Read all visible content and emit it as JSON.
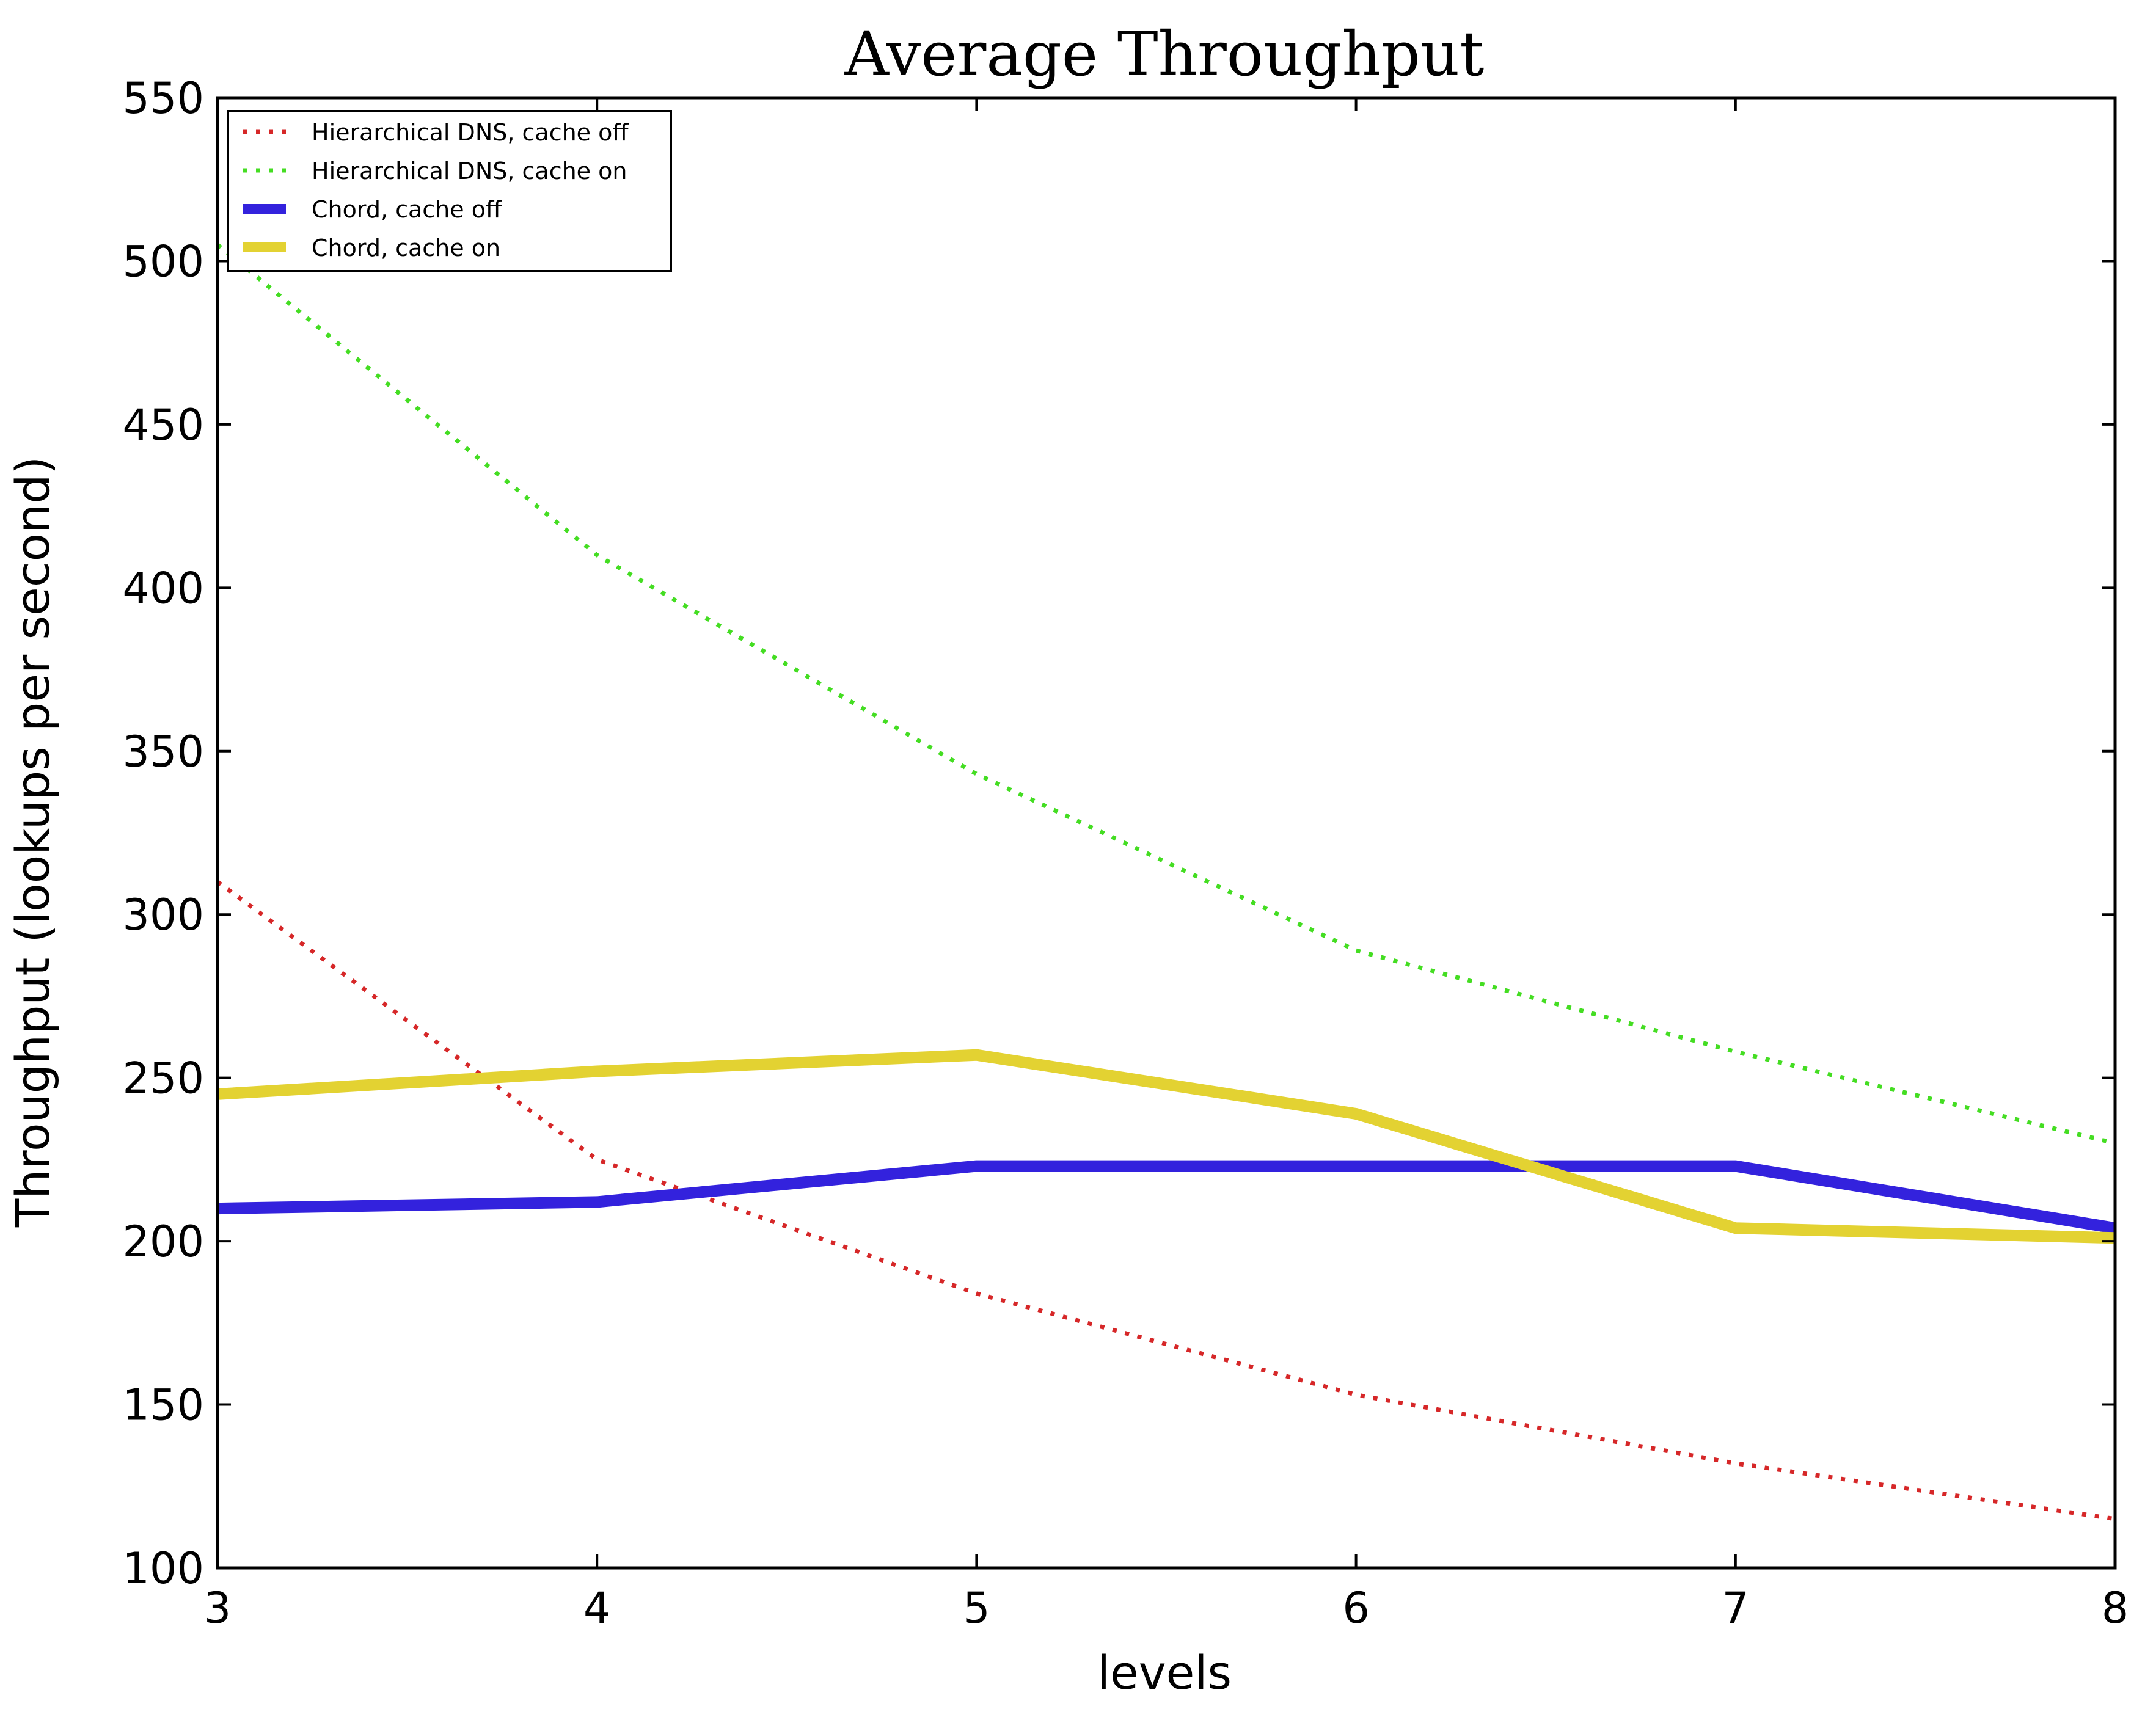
{
  "chart_data": {
    "type": "line",
    "title": "Average Throughput",
    "xlabel": "levels",
    "ylabel": "Throughput (lookups per second)",
    "x": [
      3,
      4,
      5,
      6,
      7,
      8
    ],
    "xlim": [
      3,
      8
    ],
    "ylim": [
      100,
      550
    ],
    "xticks": [
      "3",
      "4",
      "5",
      "6",
      "7",
      "8"
    ],
    "yticks": [
      "100",
      "150",
      "200",
      "250",
      "300",
      "350",
      "400",
      "450",
      "500",
      "550"
    ],
    "grid": false,
    "legend_position": "top-left",
    "series": [
      {
        "name": "Hierarchical DNS, cache off",
        "color": "#d62728",
        "style": "dotted",
        "values": [
          310,
          225,
          184,
          153,
          132,
          115
        ]
      },
      {
        "name": "Hierarchical DNS, cache on",
        "color": "#44dd22",
        "style": "dotted",
        "values": [
          505,
          410,
          343,
          289,
          258,
          230
        ]
      },
      {
        "name": "Chord, cache off",
        "color": "#3322dd",
        "style": "solid",
        "values": [
          210,
          212,
          223,
          223,
          223,
          204
        ]
      },
      {
        "name": "Chord, cache on",
        "color": "#e3d232",
        "style": "solid",
        "values": [
          245,
          252,
          257,
          239,
          204,
          201
        ]
      }
    ]
  }
}
